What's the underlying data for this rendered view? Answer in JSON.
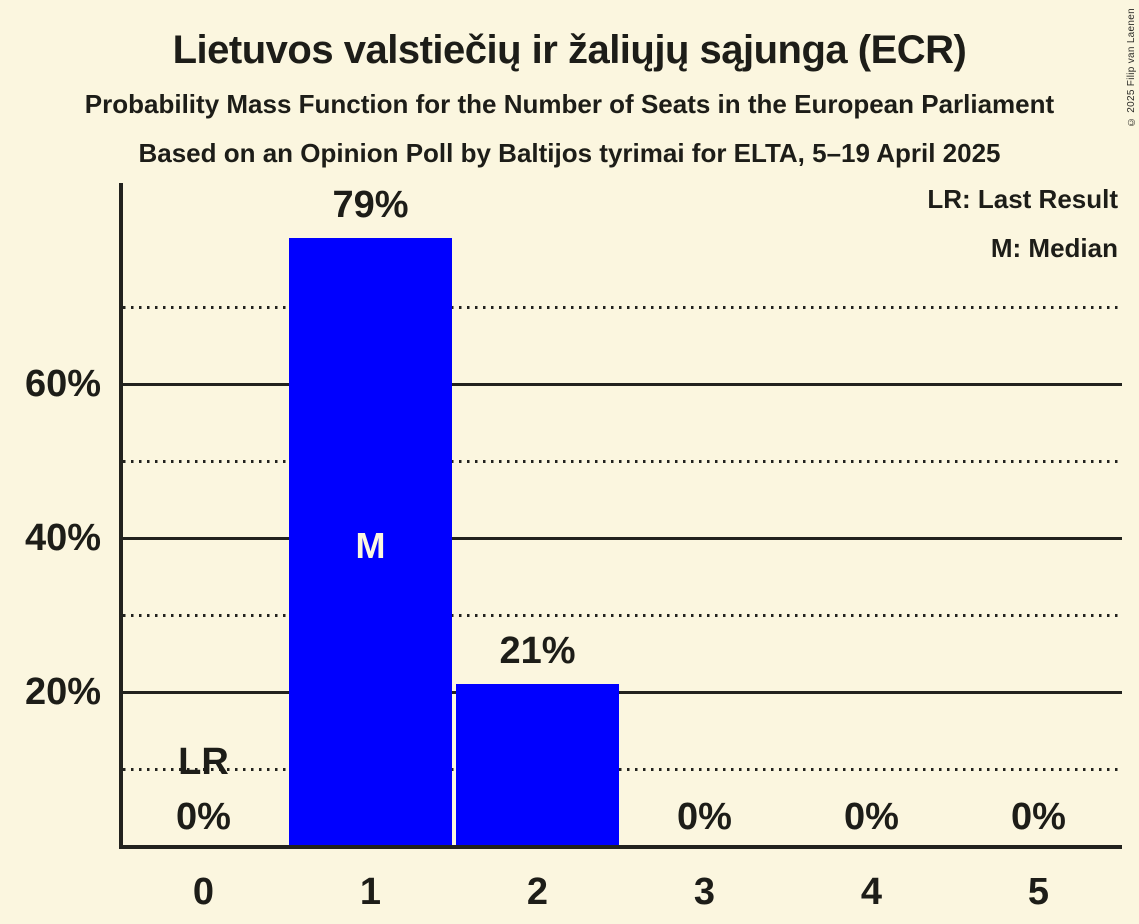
{
  "header": {
    "title": "Lietuvos valstiečių ir žaliųjų sąjunga (ECR)",
    "subtitle": "Probability Mass Function for the Number of Seats in the European Parliament",
    "source": "Based on an Opinion Poll by Baltijos tyrimai for ELTA, 5–19 April 2025"
  },
  "legend": {
    "lr_label": "LR: Last Result",
    "m_label": "M: Median"
  },
  "footer": {
    "copyright": "© 2025 Filip van Laenen"
  },
  "colors": {
    "background": "#FBF6DF",
    "bar": "#0000FF",
    "text": "#1D1D18",
    "grid": "#22221E",
    "bar_text": "#FBF6DF"
  },
  "chart_data": {
    "type": "bar",
    "title": "Lietuvos valstiečių ir žaliųjų sąjunga (ECR)",
    "categories": [
      "0",
      "1",
      "2",
      "3",
      "4",
      "5"
    ],
    "values": [
      0,
      79,
      21,
      0,
      0,
      0
    ],
    "value_labels": [
      "0%",
      "79%",
      "21%",
      "0%",
      "0%",
      "0%"
    ],
    "unit": "percent",
    "xlabel": "",
    "ylabel": "",
    "ylim": [
      0,
      86
    ],
    "y_ticks": [
      {
        "value": 20,
        "label": "20%"
      },
      {
        "value": 40,
        "label": "40%"
      },
      {
        "value": 60,
        "label": "60%"
      }
    ],
    "gridlines": {
      "solid": [
        20,
        40,
        60
      ],
      "dotted": [
        10,
        30,
        50,
        70
      ]
    },
    "legend_position": "top-right",
    "annotations": [
      {
        "type": "median",
        "label": "M",
        "category": "1"
      },
      {
        "type": "last_result",
        "label": "LR",
        "category": "0"
      }
    ]
  }
}
